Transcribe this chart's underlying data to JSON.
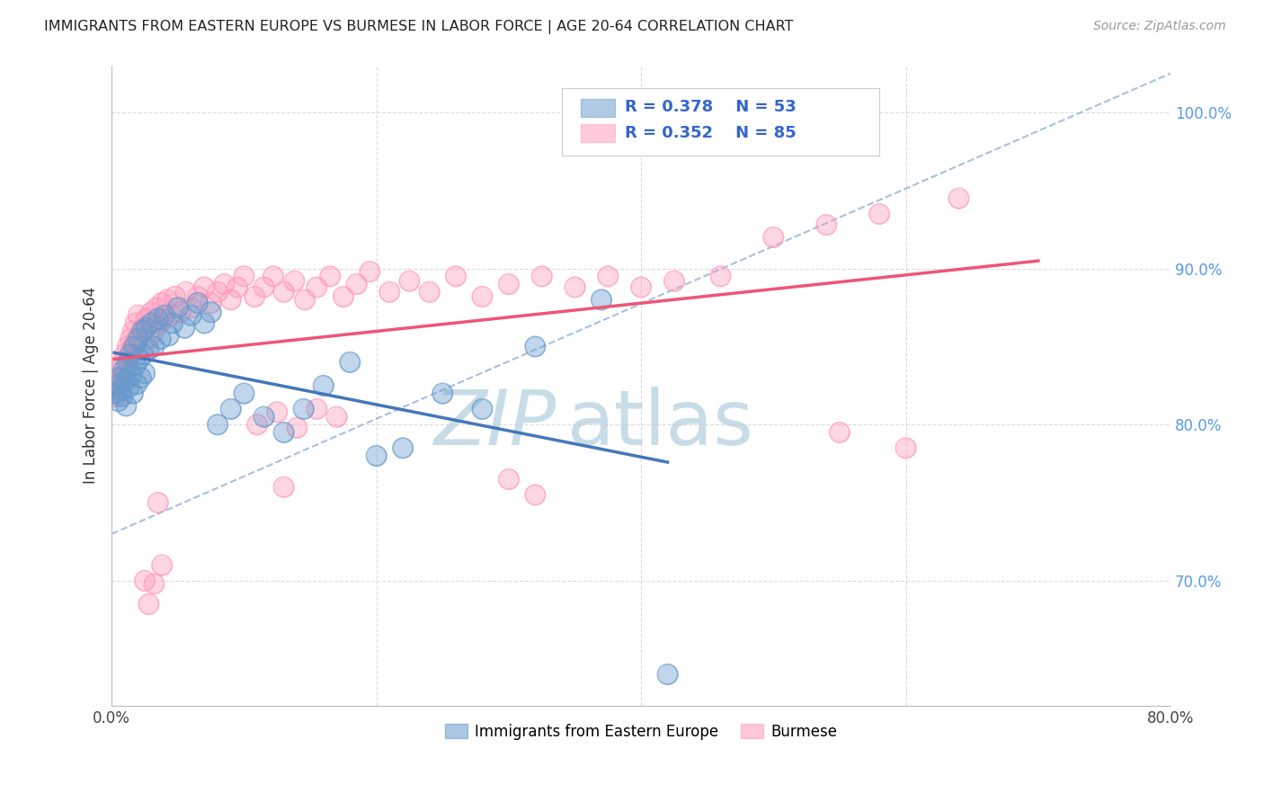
{
  "title": "IMMIGRANTS FROM EASTERN EUROPE VS BURMESE IN LABOR FORCE | AGE 20-64 CORRELATION CHART",
  "source": "Source: ZipAtlas.com",
  "ylabel": "In Labor Force | Age 20-64",
  "xlim": [
    0.0,
    0.8
  ],
  "ylim": [
    0.62,
    1.03
  ],
  "yticks": [
    0.7,
    0.8,
    0.9,
    1.0
  ],
  "ytick_labels": [
    "70.0%",
    "80.0%",
    "90.0%",
    "100.0%"
  ],
  "xticks": [
    0.0,
    0.2,
    0.4,
    0.6,
    0.8
  ],
  "xtick_labels": [
    "0.0%",
    "",
    "",
    "",
    "80.0%"
  ],
  "blue_R": 0.378,
  "blue_N": 53,
  "pink_R": 0.352,
  "pink_N": 85,
  "blue_color": "#6699cc",
  "pink_color": "#ff99bb",
  "blue_label": "Immigrants from Eastern Europe",
  "pink_label": "Burmese",
  "blue_scatter_x": [
    0.002,
    0.004,
    0.005,
    0.006,
    0.007,
    0.008,
    0.009,
    0.01,
    0.011,
    0.012,
    0.013,
    0.014,
    0.015,
    0.016,
    0.017,
    0.018,
    0.019,
    0.02,
    0.021,
    0.022,
    0.023,
    0.024,
    0.025,
    0.026,
    0.028,
    0.03,
    0.032,
    0.035,
    0.037,
    0.04,
    0.043,
    0.046,
    0.05,
    0.055,
    0.06,
    0.065,
    0.07,
    0.075,
    0.08,
    0.09,
    0.1,
    0.115,
    0.13,
    0.145,
    0.16,
    0.18,
    0.2,
    0.22,
    0.25,
    0.28,
    0.32,
    0.37,
    0.42
  ],
  "blue_scatter_y": [
    0.82,
    0.825,
    0.815,
    0.83,
    0.822,
    0.818,
    0.835,
    0.828,
    0.812,
    0.84,
    0.824,
    0.845,
    0.832,
    0.82,
    0.85,
    0.838,
    0.826,
    0.855,
    0.842,
    0.83,
    0.86,
    0.845,
    0.833,
    0.862,
    0.848,
    0.865,
    0.85,
    0.868,
    0.855,
    0.87,
    0.857,
    0.865,
    0.875,
    0.862,
    0.87,
    0.878,
    0.865,
    0.872,
    0.8,
    0.81,
    0.82,
    0.805,
    0.795,
    0.81,
    0.825,
    0.84,
    0.78,
    0.785,
    0.82,
    0.81,
    0.85,
    0.88,
    0.64
  ],
  "pink_scatter_x": [
    0.002,
    0.003,
    0.004,
    0.005,
    0.006,
    0.007,
    0.008,
    0.009,
    0.01,
    0.011,
    0.012,
    0.013,
    0.014,
    0.015,
    0.016,
    0.017,
    0.018,
    0.019,
    0.02,
    0.022,
    0.024,
    0.026,
    0.028,
    0.03,
    0.032,
    0.034,
    0.036,
    0.038,
    0.04,
    0.042,
    0.045,
    0.048,
    0.052,
    0.056,
    0.06,
    0.065,
    0.07,
    0.075,
    0.08,
    0.085,
    0.09,
    0.095,
    0.1,
    0.108,
    0.115,
    0.122,
    0.13,
    0.138,
    0.146,
    0.155,
    0.165,
    0.175,
    0.185,
    0.195,
    0.21,
    0.225,
    0.24,
    0.26,
    0.28,
    0.3,
    0.325,
    0.35,
    0.375,
    0.4,
    0.425,
    0.46,
    0.5,
    0.54,
    0.58,
    0.64,
    0.11,
    0.125,
    0.14,
    0.155,
    0.17,
    0.035,
    0.025,
    0.028,
    0.032,
    0.038,
    0.3,
    0.32,
    0.13,
    0.55,
    0.6
  ],
  "pink_scatter_y": [
    0.825,
    0.818,
    0.83,
    0.822,
    0.835,
    0.828,
    0.84,
    0.832,
    0.845,
    0.838,
    0.85,
    0.842,
    0.855,
    0.848,
    0.86,
    0.852,
    0.865,
    0.855,
    0.87,
    0.858,
    0.862,
    0.868,
    0.855,
    0.872,
    0.86,
    0.875,
    0.865,
    0.878,
    0.868,
    0.88,
    0.87,
    0.882,
    0.872,
    0.885,
    0.875,
    0.882,
    0.888,
    0.878,
    0.885,
    0.89,
    0.88,
    0.888,
    0.895,
    0.882,
    0.888,
    0.895,
    0.885,
    0.892,
    0.88,
    0.888,
    0.895,
    0.882,
    0.89,
    0.898,
    0.885,
    0.892,
    0.885,
    0.895,
    0.882,
    0.89,
    0.895,
    0.888,
    0.895,
    0.888,
    0.892,
    0.895,
    0.92,
    0.928,
    0.935,
    0.945,
    0.8,
    0.808,
    0.798,
    0.81,
    0.805,
    0.75,
    0.7,
    0.685,
    0.698,
    0.71,
    0.765,
    0.755,
    0.76,
    0.795,
    0.785
  ],
  "blue_line_color": "#4477bb",
  "pink_line_color": "#ee5577",
  "ref_line_color": "#99bbdd",
  "ref_line_style": "--",
  "watermark_zip": "ZIP",
  "watermark_atlas": "atlas",
  "watermark_color": "#c8dce8",
  "background_color": "#ffffff",
  "grid_color": "#cccccc"
}
